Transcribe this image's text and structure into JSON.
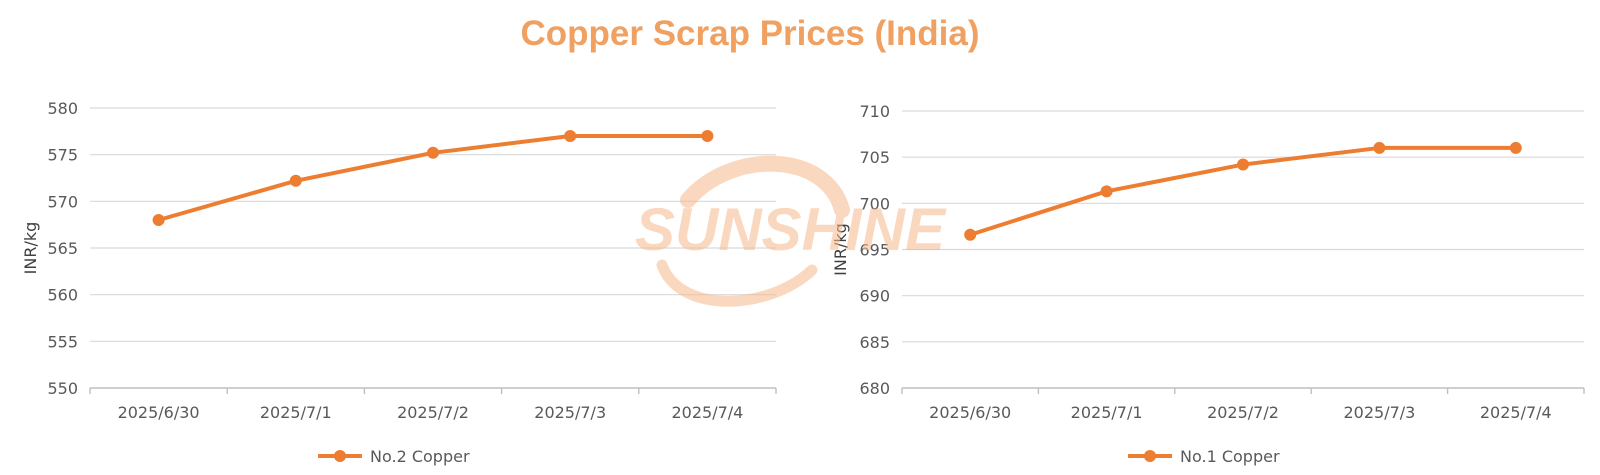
{
  "title": "Copper Scrap Prices (India)",
  "colors": {
    "title": "#f0a060",
    "series": "#ed7d31",
    "grid": "#d9d9d9",
    "axis": "#bfbfbf",
    "watermark": "#f6b98c"
  },
  "watermark": {
    "text": "SUNSHINE"
  },
  "chart_data": [
    {
      "type": "line",
      "title": "",
      "xlabel": "",
      "ylabel": "INR/kg",
      "ylim": [
        550,
        580
      ],
      "ytick_step": 5,
      "categories": [
        "2025/6/30",
        "2025/7/1",
        "2025/7/2",
        "2025/7/3",
        "2025/7/4"
      ],
      "series": [
        {
          "name": "No.2 Copper",
          "values": [
            568,
            572.2,
            575.2,
            577,
            577
          ]
        }
      ],
      "grid": true,
      "legend": "bottom-center"
    },
    {
      "type": "line",
      "title": "",
      "xlabel": "",
      "ylabel": "INR/kg",
      "ylim": [
        680,
        710
      ],
      "ytick_step": 5,
      "categories": [
        "2025/6/30",
        "2025/7/1",
        "2025/7/2",
        "2025/7/3",
        "2025/7/4"
      ],
      "series": [
        {
          "name": "No.1 Copper",
          "values": [
            696.6,
            701.3,
            704.2,
            706,
            706
          ]
        }
      ],
      "grid": true,
      "legend": "bottom-center"
    }
  ]
}
